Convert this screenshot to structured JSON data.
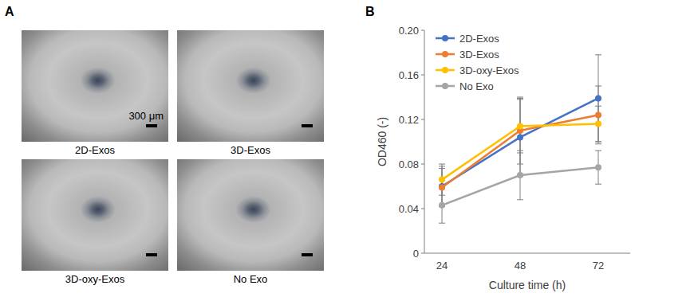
{
  "figure": {
    "panel_labels": [
      "A",
      "B"
    ],
    "images": [
      {
        "caption": "2D-Exos",
        "scale_bar_label": "300 μm"
      },
      {
        "caption": "3D-Exos"
      },
      {
        "caption": "3D-oxy-Exos"
      },
      {
        "caption": "No Exo"
      }
    ]
  },
  "chart_data": {
    "type": "line",
    "x_label": "Culture time (h)",
    "y_label": "OD460 (-)",
    "categories": [
      "24",
      "48",
      "72"
    ],
    "series": [
      {
        "name": "2D-Exos",
        "color": "#4472c4",
        "values": [
          0.06,
          0.104,
          0.139
        ],
        "errors": [
          0.018,
          0.035,
          0.039
        ]
      },
      {
        "name": "3D-Exos",
        "color": "#ed7d31",
        "values": [
          0.059,
          0.11,
          0.124
        ],
        "errors": [
          0.017,
          0.03,
          0.026
        ]
      },
      {
        "name": "3D-oxy-Exos",
        "color": "#ffc000",
        "values": [
          0.066,
          0.114,
          0.116
        ],
        "errors": [
          0.014,
          0.024,
          0.016
        ]
      },
      {
        "name": "No Exo",
        "color": "#a5a5a5",
        "values": [
          0.043,
          0.07,
          0.077
        ],
        "errors": [
          0.016,
          0.022,
          0.015
        ]
      }
    ],
    "ylim": [
      0,
      0.2
    ],
    "yticks": [
      0,
      0.04,
      0.08,
      0.12,
      0.16,
      {
        "value": 0.2,
        "label": "0.20"
      }
    ],
    "grid": false,
    "legend": "top-left",
    "marker": "circle"
  }
}
